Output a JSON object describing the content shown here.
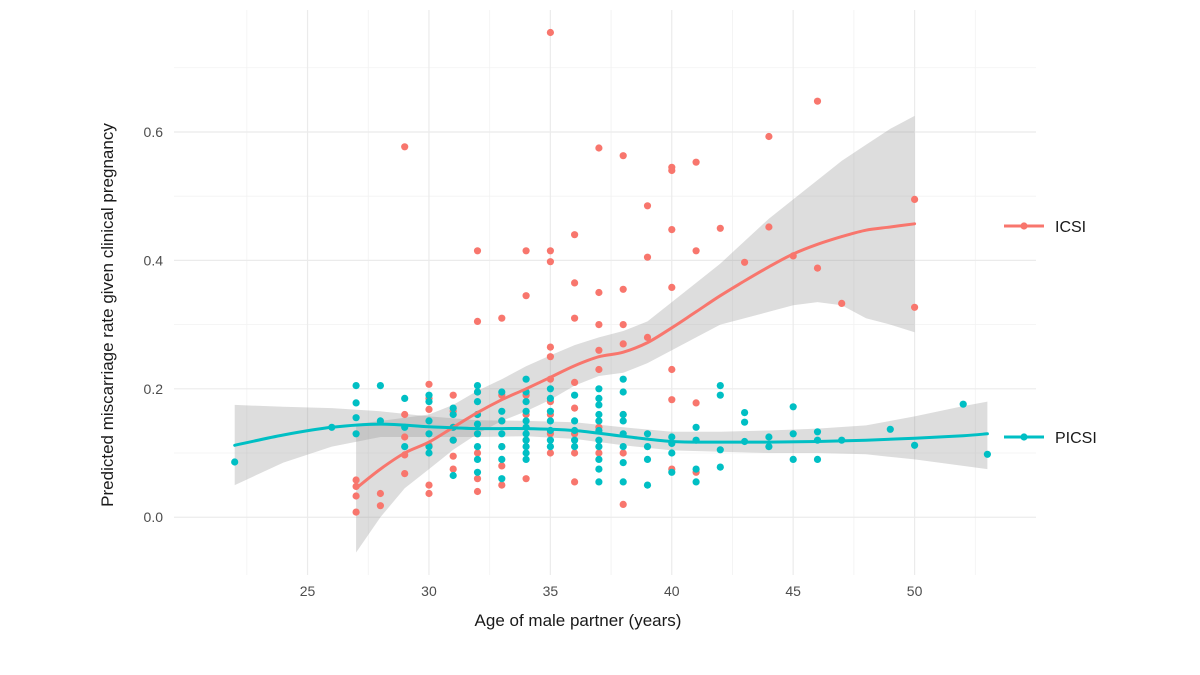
{
  "chart_data": {
    "type": "scatter",
    "title": "",
    "xlabel": "Age of male partner (years)",
    "ylabel": "Predicted miscarriage rate given clinical pregnancy",
    "xlim": [
      19.5,
      55
    ],
    "ylim": [
      -0.09,
      0.79
    ],
    "xticks": [
      25,
      30,
      35,
      40,
      45,
      50
    ],
    "yticks": [
      0.0,
      0.2,
      0.4,
      0.6
    ],
    "xtick_labels": [
      "25",
      "30",
      "35",
      "40",
      "45",
      "50"
    ],
    "ytick_labels": [
      "0.0",
      "0.2",
      "0.4",
      "0.6"
    ],
    "grid": true,
    "legend_position": "right",
    "series": [
      {
        "name": "ICSI",
        "color": "#F8766D",
        "points": [
          [
            27,
            0.058
          ],
          [
            27,
            0.048
          ],
          [
            27,
            0.033
          ],
          [
            27,
            0.008
          ],
          [
            28,
            0.037
          ],
          [
            28,
            0.018
          ],
          [
            29,
            0.577
          ],
          [
            29,
            0.16
          ],
          [
            29,
            0.125
          ],
          [
            29,
            0.097
          ],
          [
            29,
            0.068
          ],
          [
            30,
            0.207
          ],
          [
            30,
            0.185
          ],
          [
            30,
            0.168
          ],
          [
            30,
            0.112
          ],
          [
            30,
            0.05
          ],
          [
            30,
            0.037
          ],
          [
            31,
            0.19
          ],
          [
            31,
            0.165
          ],
          [
            31,
            0.14
          ],
          [
            31,
            0.12
          ],
          [
            31,
            0.095
          ],
          [
            31,
            0.075
          ],
          [
            32,
            0.415
          ],
          [
            32,
            0.305
          ],
          [
            32,
            0.195
          ],
          [
            32,
            0.16
          ],
          [
            32,
            0.13
          ],
          [
            32,
            0.1
          ],
          [
            32,
            0.06
          ],
          [
            32,
            0.04
          ],
          [
            33,
            0.31
          ],
          [
            33,
            0.19
          ],
          [
            33,
            0.15
          ],
          [
            33,
            0.11
          ],
          [
            33,
            0.08
          ],
          [
            33,
            0.05
          ],
          [
            34,
            0.415
          ],
          [
            34,
            0.345
          ],
          [
            34,
            0.19
          ],
          [
            34,
            0.16
          ],
          [
            34,
            0.12
          ],
          [
            34,
            0.06
          ],
          [
            35,
            0.755
          ],
          [
            35,
            0.415
          ],
          [
            35,
            0.398
          ],
          [
            35,
            0.265
          ],
          [
            35,
            0.25
          ],
          [
            35,
            0.215
          ],
          [
            35,
            0.18
          ],
          [
            35,
            0.16
          ],
          [
            35,
            0.13
          ],
          [
            35,
            0.1
          ],
          [
            36,
            0.44
          ],
          [
            36,
            0.365
          ],
          [
            36,
            0.31
          ],
          [
            36,
            0.21
          ],
          [
            36,
            0.17
          ],
          [
            36,
            0.13
          ],
          [
            36,
            0.1
          ],
          [
            36,
            0.055
          ],
          [
            37,
            0.575
          ],
          [
            37,
            0.35
          ],
          [
            37,
            0.3
          ],
          [
            37,
            0.26
          ],
          [
            37,
            0.23
          ],
          [
            37,
            0.14
          ],
          [
            37,
            0.1
          ],
          [
            38,
            0.563
          ],
          [
            38,
            0.355
          ],
          [
            38,
            0.3
          ],
          [
            38,
            0.27
          ],
          [
            38,
            0.16
          ],
          [
            38,
            0.1
          ],
          [
            38,
            0.02
          ],
          [
            39,
            0.485
          ],
          [
            39,
            0.405
          ],
          [
            39,
            0.28
          ],
          [
            40,
            0.545
          ],
          [
            40,
            0.54
          ],
          [
            40,
            0.448
          ],
          [
            40,
            0.358
          ],
          [
            40,
            0.23
          ],
          [
            40,
            0.183
          ],
          [
            40,
            0.075
          ],
          [
            41,
            0.553
          ],
          [
            41,
            0.415
          ],
          [
            41,
            0.178
          ],
          [
            41,
            0.07
          ],
          [
            42,
            0.45
          ],
          [
            43,
            0.397
          ],
          [
            44,
            0.593
          ],
          [
            44,
            0.452
          ],
          [
            45,
            0.407
          ],
          [
            46,
            0.648
          ],
          [
            46,
            0.388
          ],
          [
            47,
            0.333
          ],
          [
            50,
            0.495
          ],
          [
            50,
            0.327
          ]
        ],
        "smooth": [
          [
            27,
            0.045,
            -0.055,
            0.145
          ],
          [
            28,
            0.075,
            0.0,
            0.15
          ],
          [
            29,
            0.1,
            0.045,
            0.155
          ],
          [
            30,
            0.117,
            0.075,
            0.16
          ],
          [
            31,
            0.14,
            0.105,
            0.175
          ],
          [
            32,
            0.163,
            0.13,
            0.197
          ],
          [
            33,
            0.183,
            0.15,
            0.215
          ],
          [
            34,
            0.2,
            0.165,
            0.235
          ],
          [
            35,
            0.218,
            0.183,
            0.252
          ],
          [
            36,
            0.236,
            0.205,
            0.268
          ],
          [
            37,
            0.25,
            0.22,
            0.28
          ],
          [
            38,
            0.257,
            0.225,
            0.29
          ],
          [
            39,
            0.272,
            0.24,
            0.305
          ],
          [
            40,
            0.295,
            0.26,
            0.335
          ],
          [
            41,
            0.32,
            0.28,
            0.365
          ],
          [
            42,
            0.345,
            0.3,
            0.395
          ],
          [
            43,
            0.368,
            0.31,
            0.43
          ],
          [
            44,
            0.39,
            0.32,
            0.465
          ],
          [
            45,
            0.41,
            0.33,
            0.495
          ],
          [
            46,
            0.425,
            0.335,
            0.525
          ],
          [
            47,
            0.437,
            0.33,
            0.555
          ],
          [
            48,
            0.447,
            0.31,
            0.58
          ],
          [
            49,
            0.452,
            0.3,
            0.605
          ],
          [
            50,
            0.457,
            0.288,
            0.625
          ]
        ]
      },
      {
        "name": "PICSI",
        "color": "#00BFC4",
        "points": [
          [
            22,
            0.086
          ],
          [
            26,
            0.14
          ],
          [
            27,
            0.205
          ],
          [
            27,
            0.178
          ],
          [
            27,
            0.155
          ],
          [
            27,
            0.13
          ],
          [
            28,
            0.205
          ],
          [
            28,
            0.15
          ],
          [
            29,
            0.185
          ],
          [
            29,
            0.14
          ],
          [
            29,
            0.11
          ],
          [
            30,
            0.19
          ],
          [
            30,
            0.18
          ],
          [
            30,
            0.15
          ],
          [
            30,
            0.13
          ],
          [
            30,
            0.11
          ],
          [
            30,
            0.1
          ],
          [
            31,
            0.17
          ],
          [
            31,
            0.16
          ],
          [
            31,
            0.14
          ],
          [
            31,
            0.12
          ],
          [
            31,
            0.065
          ],
          [
            32,
            0.205
          ],
          [
            32,
            0.195
          ],
          [
            32,
            0.18
          ],
          [
            32,
            0.16
          ],
          [
            32,
            0.145
          ],
          [
            32,
            0.13
          ],
          [
            32,
            0.11
          ],
          [
            32,
            0.09
          ],
          [
            32,
            0.07
          ],
          [
            33,
            0.195
          ],
          [
            33,
            0.165
          ],
          [
            33,
            0.15
          ],
          [
            33,
            0.13
          ],
          [
            33,
            0.11
          ],
          [
            33,
            0.09
          ],
          [
            33,
            0.06
          ],
          [
            34,
            0.215
          ],
          [
            34,
            0.195
          ],
          [
            34,
            0.18
          ],
          [
            34,
            0.165
          ],
          [
            34,
            0.15
          ],
          [
            34,
            0.14
          ],
          [
            34,
            0.13
          ],
          [
            34,
            0.12
          ],
          [
            34,
            0.11
          ],
          [
            34,
            0.1
          ],
          [
            34,
            0.09
          ],
          [
            35,
            0.2
          ],
          [
            35,
            0.185
          ],
          [
            35,
            0.165
          ],
          [
            35,
            0.15
          ],
          [
            35,
            0.135
          ],
          [
            35,
            0.12
          ],
          [
            35,
            0.11
          ],
          [
            36,
            0.19
          ],
          [
            36,
            0.15
          ],
          [
            36,
            0.135
          ],
          [
            36,
            0.12
          ],
          [
            36,
            0.11
          ],
          [
            37,
            0.2
          ],
          [
            37,
            0.185
          ],
          [
            37,
            0.175
          ],
          [
            37,
            0.16
          ],
          [
            37,
            0.15
          ],
          [
            37,
            0.135
          ],
          [
            37,
            0.12
          ],
          [
            37,
            0.11
          ],
          [
            37,
            0.09
          ],
          [
            37,
            0.075
          ],
          [
            37,
            0.055
          ],
          [
            38,
            0.215
          ],
          [
            38,
            0.195
          ],
          [
            38,
            0.16
          ],
          [
            38,
            0.15
          ],
          [
            38,
            0.13
          ],
          [
            38,
            0.11
          ],
          [
            38,
            0.085
          ],
          [
            38,
            0.055
          ],
          [
            39,
            0.13
          ],
          [
            39,
            0.11
          ],
          [
            39,
            0.09
          ],
          [
            39,
            0.05
          ],
          [
            40,
            0.125
          ],
          [
            40,
            0.115
          ],
          [
            40,
            0.1
          ],
          [
            40,
            0.07
          ],
          [
            41,
            0.14
          ],
          [
            41,
            0.12
          ],
          [
            41,
            0.075
          ],
          [
            41,
            0.055
          ],
          [
            42,
            0.205
          ],
          [
            42,
            0.19
          ],
          [
            42,
            0.105
          ],
          [
            42,
            0.078
          ],
          [
            43,
            0.163
          ],
          [
            43,
            0.148
          ],
          [
            43,
            0.118
          ],
          [
            44,
            0.125
          ],
          [
            44,
            0.11
          ],
          [
            45,
            0.172
          ],
          [
            45,
            0.13
          ],
          [
            45,
            0.09
          ],
          [
            46,
            0.133
          ],
          [
            46,
            0.12
          ],
          [
            46,
            0.09
          ],
          [
            47,
            0.12
          ],
          [
            49,
            0.137
          ],
          [
            50,
            0.112
          ],
          [
            52,
            0.176
          ],
          [
            53,
            0.098
          ]
        ],
        "smooth": [
          [
            22,
            0.112,
            0.05,
            0.175
          ],
          [
            24,
            0.128,
            0.085,
            0.172
          ],
          [
            26,
            0.14,
            0.11,
            0.17
          ],
          [
            28,
            0.145,
            0.125,
            0.165
          ],
          [
            30,
            0.141,
            0.125,
            0.157
          ],
          [
            32,
            0.138,
            0.125,
            0.151
          ],
          [
            34,
            0.138,
            0.126,
            0.15
          ],
          [
            36,
            0.135,
            0.122,
            0.148
          ],
          [
            38,
            0.126,
            0.112,
            0.14
          ],
          [
            40,
            0.118,
            0.104,
            0.133
          ],
          [
            42,
            0.117,
            0.102,
            0.133
          ],
          [
            44,
            0.117,
            0.1,
            0.135
          ],
          [
            46,
            0.118,
            0.1,
            0.138
          ],
          [
            48,
            0.12,
            0.098,
            0.143
          ],
          [
            50,
            0.123,
            0.09,
            0.157
          ],
          [
            52,
            0.127,
            0.08,
            0.173
          ],
          [
            53,
            0.13,
            0.075,
            0.18
          ]
        ]
      }
    ]
  }
}
